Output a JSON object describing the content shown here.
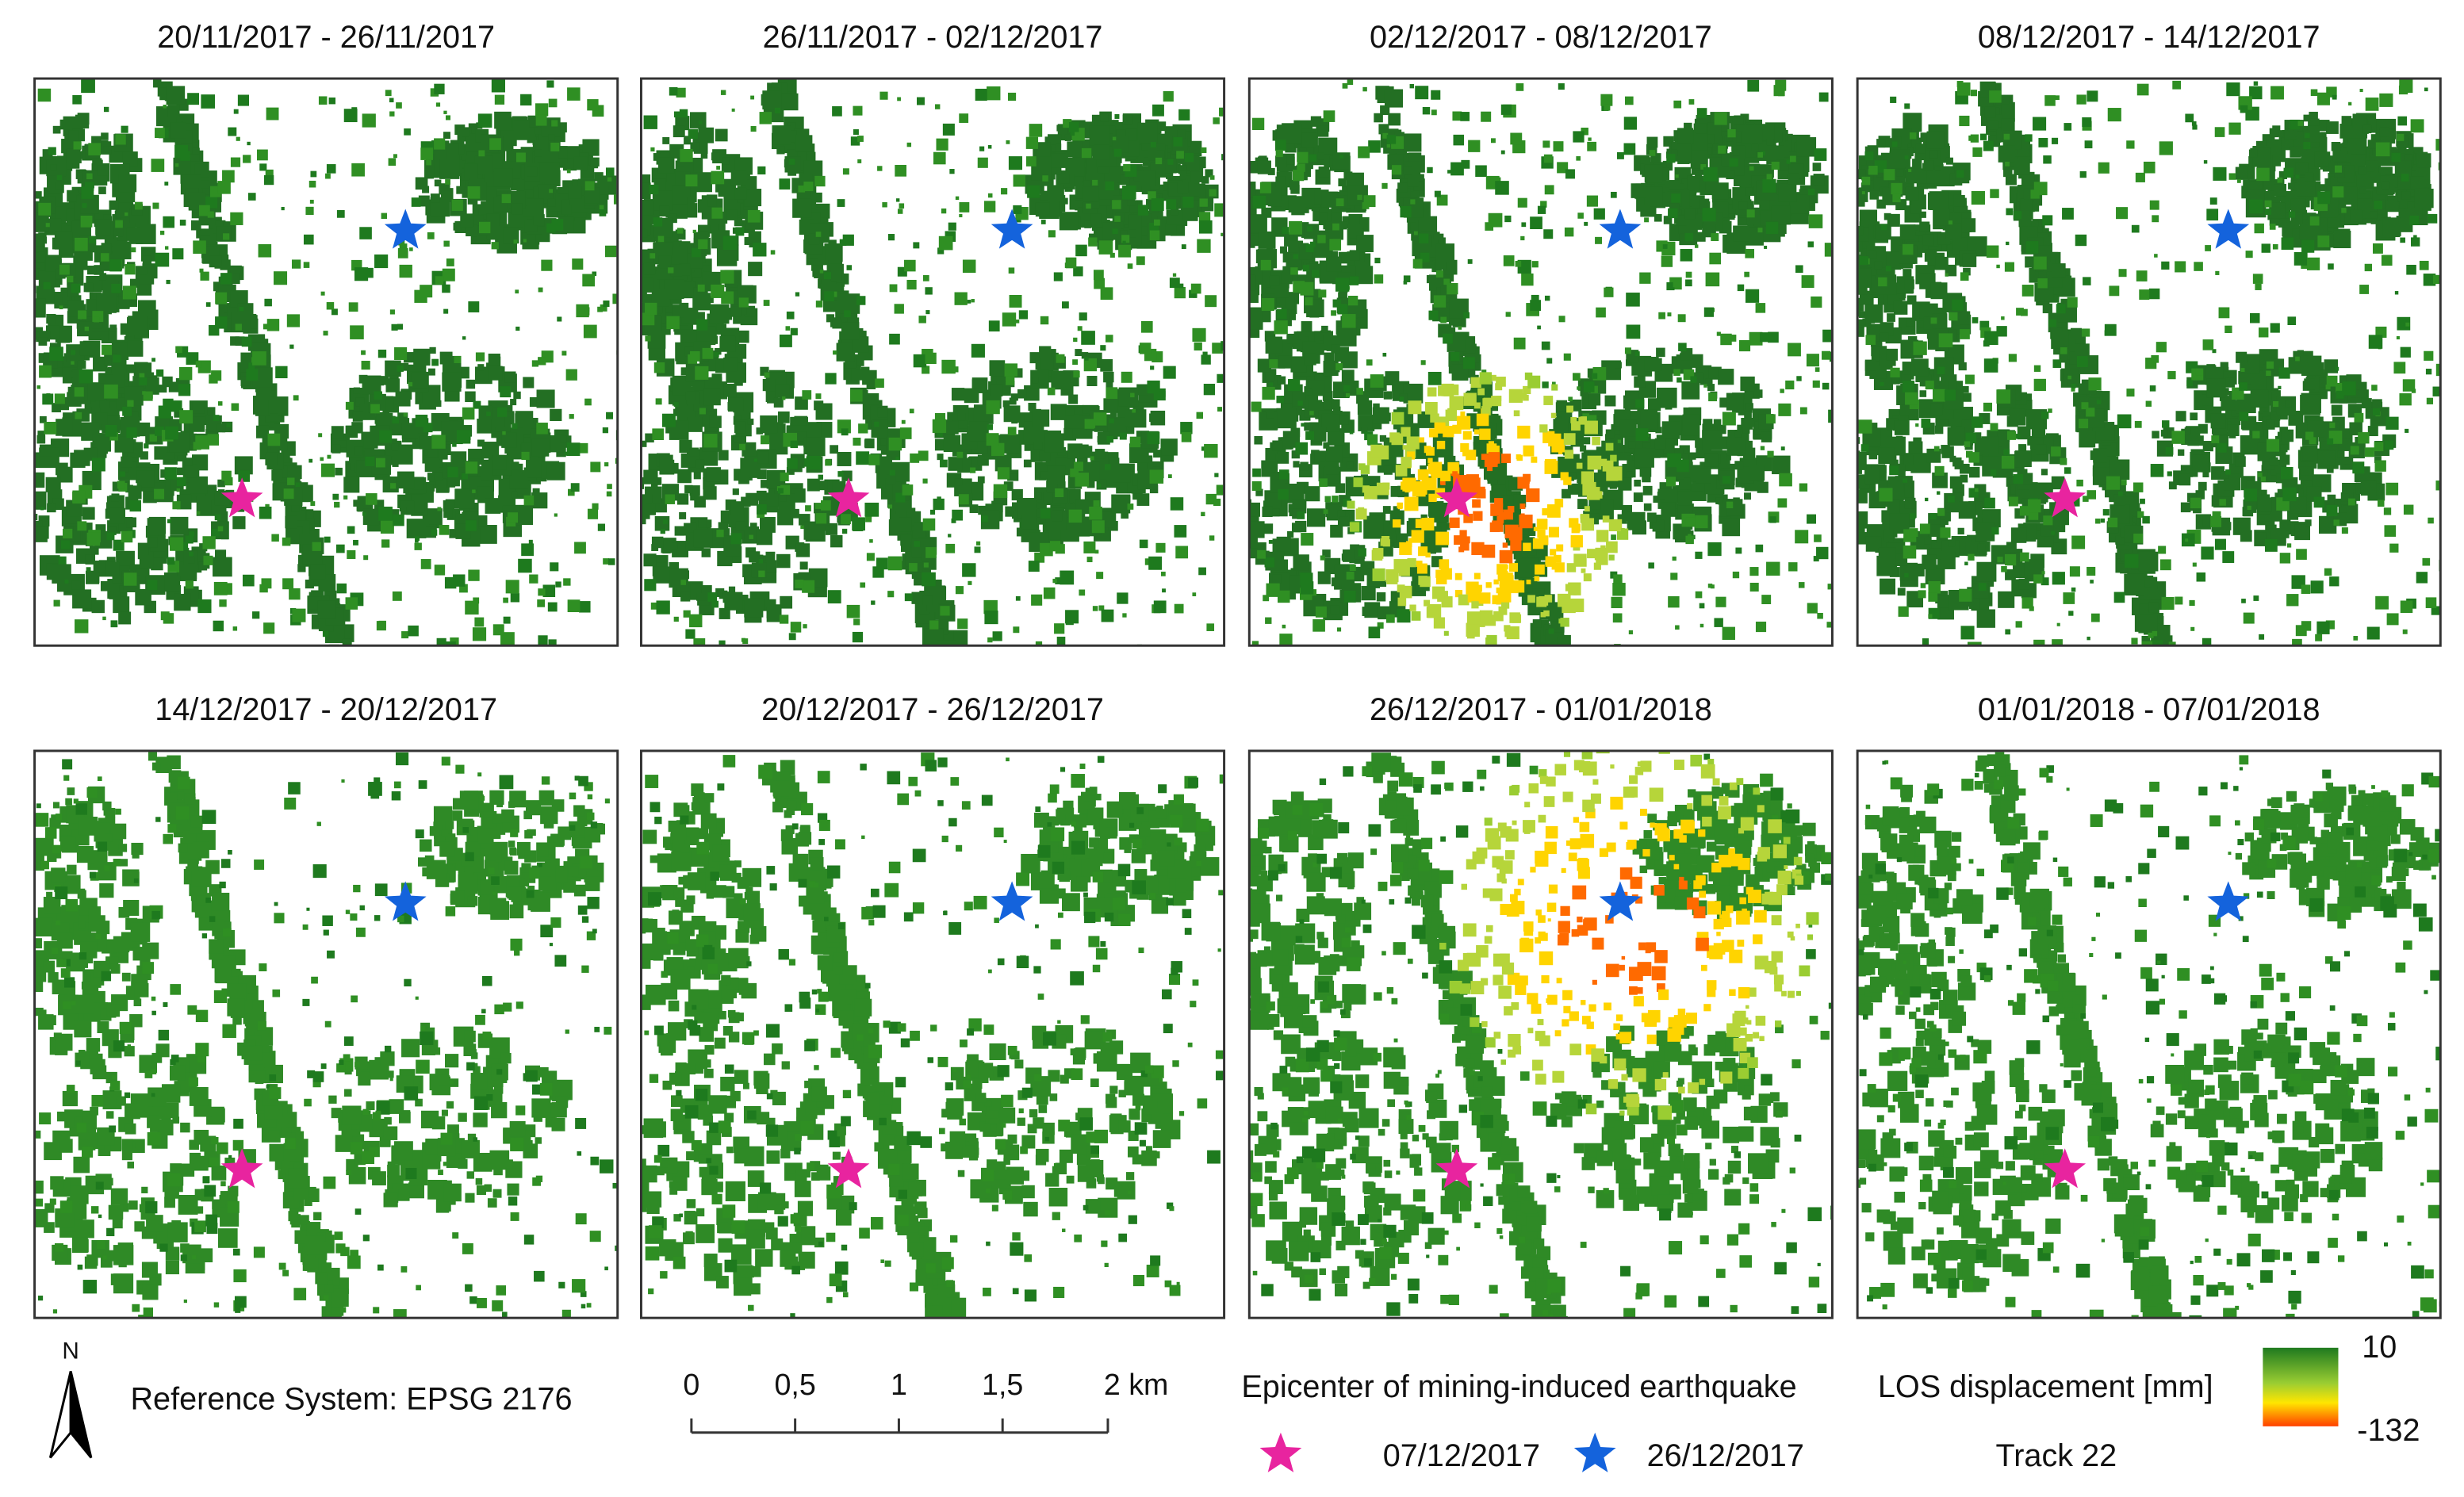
{
  "panels": [
    {
      "title": "20/11/2017 - 26/11/2017"
    },
    {
      "title": "26/11/2017 - 02/12/2017"
    },
    {
      "title": "02/12/2017 - 08/12/2017"
    },
    {
      "title": "08/12/2017 - 14/12/2017"
    },
    {
      "title": "14/12/2017 - 20/12/2017"
    },
    {
      "title": "20/12/2017 - 26/12/2017"
    },
    {
      "title": "26/12/2017 - 01/01/2018"
    },
    {
      "title": "01/01/2018 - 07/01/2018"
    }
  ],
  "north": "N",
  "reference": "Reference System: EPSG 2176",
  "scale_bar": {
    "labels": [
      "0",
      "0,5",
      "1",
      "1,5",
      "2 km"
    ]
  },
  "legend": {
    "title": "Epicenter of mining-induced earthquake",
    "items": [
      {
        "label": "07/12/2017",
        "color": "#e8249f"
      },
      {
        "label": "26/12/2017",
        "color": "#1463dc"
      }
    ]
  },
  "colorbar": {
    "title": "LOS displacement [mm]",
    "max": "10",
    "min": "-132",
    "track": "Track 22"
  }
}
